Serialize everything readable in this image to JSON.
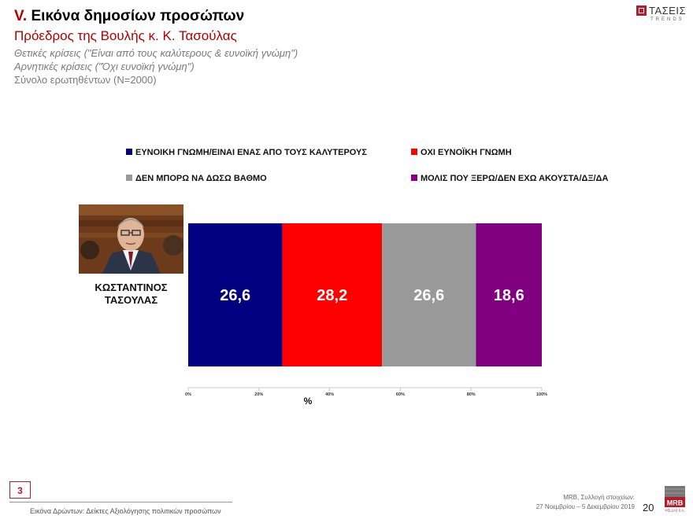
{
  "header": {
    "roman": "V.",
    "title": "Εικόνα δημοσίων προσώπων",
    "subtitle": "Πρόεδρος της Βουλής κ. Κ. Τασούλας",
    "note1": "Θετικές κρίσεις (\"Είναι από τους καλύτερους & ευνοϊκή γνώμη\")",
    "note2": "Αρνητικές κρίσεις (\"Όχι ευνοϊκή γνώμη\")",
    "note3": "Σύνολο ερωτηθέντων (N=2000)"
  },
  "brand": {
    "logo_word": "ΤΑΣΕΙΣ",
    "logo_sub": "TRENDS",
    "mrb_word": "MRB",
    "mrb_sub": "HELLAS S.A."
  },
  "person": {
    "name_line1": "ΚΩΣΤΑΝΤΙΝΟΣ",
    "name_line2": "ΤΑΣΟΥΛΑΣ"
  },
  "chart_data": {
    "type": "bar",
    "orientation": "horizontal-stacked-100",
    "categories": [
      "ΚΩΣΤΑΝΤΙΝΟΣ ΤΑΣΟΥΛΑΣ"
    ],
    "series": [
      {
        "name": "ΕΥΝΟΙΚΗ ΓΝΩΜΗ/ΕΙΝΑΙ ΕΝΑΣ ΑΠΟ ΤΟΥΣ ΚΑΛΥΤΕΡΟΥΣ",
        "values": [
          26.6
        ],
        "label": "26,6",
        "color": "#000080"
      },
      {
        "name": "ΟΧΙ ΕΥΝΟΪΚΗ ΓΝΩΜΗ",
        "values": [
          28.2
        ],
        "label": "28,2",
        "color": "#ff0000"
      },
      {
        "name": "ΔΕΝ ΜΠΟΡΩ ΝΑ ΔΩΣΩ ΒΑΘΜΟ",
        "values": [
          26.6
        ],
        "label": "26,6",
        "color": "#999999"
      },
      {
        "name": "ΜΟΛΙΣ ΠΟΥ ΞΕΡΩ/ΔΕΝ ΕΧΩ ΑΚΟΥΣΤΑ/ΔΞ/ΔΑ",
        "values": [
          18.6
        ],
        "label": "18,6",
        "color": "#800080"
      }
    ],
    "xlim": [
      0,
      100
    ],
    "xticks": [
      "0%",
      "20%",
      "40%",
      "60%",
      "80%",
      "100%"
    ],
    "xlabel": "%",
    "legend_position": "top"
  },
  "footer": {
    "page_box": "3",
    "left_text": "Εικόνα Δρώντων: Δείκτες Αξιολόγησης πολιτικών προσώπων",
    "right_line1": "MRB, Συλλογή στοιχείων:",
    "right_line2": "27 Νοεμβρίου – 5 Δεκεμβρίου 2019",
    "page_number": "20"
  }
}
